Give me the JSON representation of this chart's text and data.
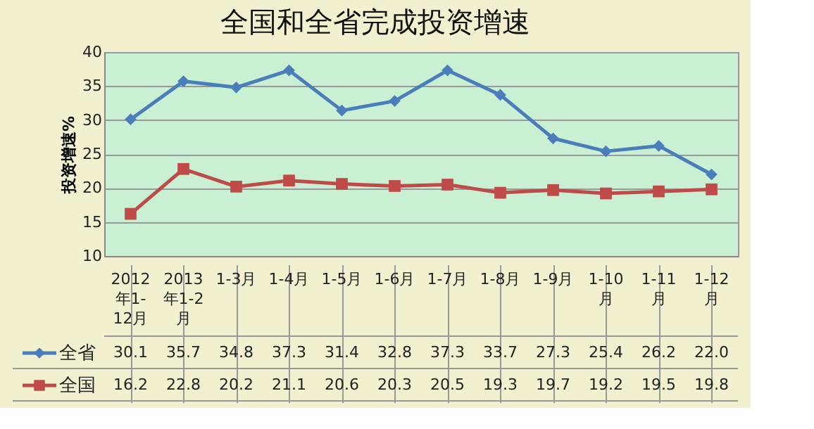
{
  "chart_data": {
    "type": "line",
    "title": "全国和全省完成投资增速",
    "ylabel": "投资增速%",
    "categories": [
      "2012年1-12月",
      "2013年1-2月",
      "1-3月",
      "1-4月",
      "1-5月",
      "1-6月",
      "1-7月",
      "1-8月",
      "1-9月",
      "1-10月",
      "1-11月",
      "1-12月"
    ],
    "series": [
      {
        "name": "全省",
        "color": "#4a7ebb",
        "marker": "diamond",
        "values": [
          30.1,
          35.7,
          34.8,
          37.3,
          31.4,
          32.8,
          37.3,
          33.7,
          27.3,
          25.4,
          26.2,
          22.0
        ],
        "value_labels": [
          "30.1",
          "35.7",
          "34.8",
          "37.3",
          "31.4",
          "32.8",
          "37.3",
          "33.7",
          "27.3",
          "25.4",
          "26.2",
          "22.0"
        ]
      },
      {
        "name": "全国",
        "color": "#be4b48",
        "marker": "square",
        "values": [
          16.2,
          22.8,
          20.2,
          21.1,
          20.6,
          20.3,
          20.5,
          19.3,
          19.7,
          19.2,
          19.5,
          19.8
        ],
        "value_labels": [
          "16.2",
          "22.8",
          "20.2",
          "21.1",
          "20.6",
          "20.3",
          "20.5",
          "19.3",
          "19.7",
          "19.2",
          "19.5",
          "19.8"
        ]
      }
    ],
    "ylim": [
      10,
      40
    ],
    "yticks": [
      10,
      15,
      20,
      25,
      30,
      35,
      40
    ],
    "grid": "y",
    "legend": "bottom left"
  }
}
